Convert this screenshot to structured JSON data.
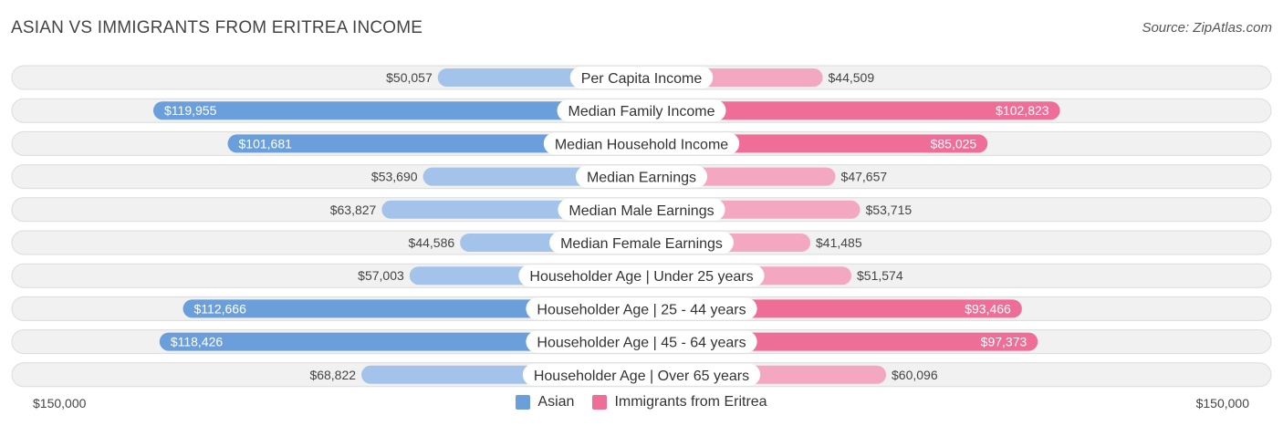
{
  "header": {
    "title": "ASIAN VS IMMIGRANTS FROM ERITREA INCOME",
    "source": "Source: ZipAtlas.com"
  },
  "axis": {
    "left_label": "$150,000",
    "right_label": "$150,000"
  },
  "legend": {
    "asian": "Asian",
    "eritrea": "Immigrants from Eritrea"
  },
  "colors": {
    "asian_strong": "#6b9fdb",
    "asian_light": "#a4c3ea",
    "eritrea_strong": "#ef6e98",
    "eritrea_light": "#f4a7c0"
  },
  "chart_data": {
    "type": "bar",
    "orientation": "diverging-horizontal",
    "title": "ASIAN VS IMMIGRANTS FROM ERITREA INCOME",
    "xlim": [
      -150000,
      150000
    ],
    "categories": [
      "Per Capita Income",
      "Median Family Income",
      "Median Household Income",
      "Median Earnings",
      "Median Male Earnings",
      "Median Female Earnings",
      "Householder Age | Under 25 years",
      "Householder Age | 25 - 44 years",
      "Householder Age | 45 - 64 years",
      "Householder Age | Over 65 years"
    ],
    "series": [
      {
        "name": "Asian",
        "values": [
          50057,
          119955,
          101681,
          53690,
          63827,
          44586,
          57003,
          112666,
          118426,
          68822
        ],
        "labels": [
          "$50,057",
          "$119,955",
          "$101,681",
          "$53,690",
          "$63,827",
          "$44,586",
          "$57,003",
          "$112,666",
          "$118,426",
          "$68,822"
        ]
      },
      {
        "name": "Immigrants from Eritrea",
        "values": [
          44509,
          102823,
          85025,
          47657,
          53715,
          41485,
          51574,
          93466,
          97373,
          60096
        ],
        "labels": [
          "$44,509",
          "$102,823",
          "$85,025",
          "$47,657",
          "$53,715",
          "$41,485",
          "$51,574",
          "$93,466",
          "$97,373",
          "$60,096"
        ]
      }
    ]
  }
}
